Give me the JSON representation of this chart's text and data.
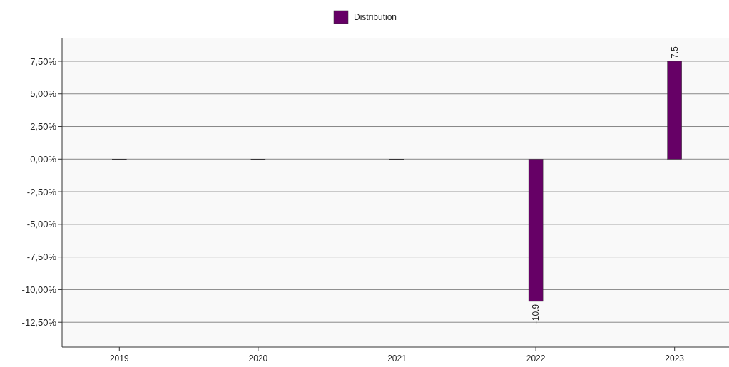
{
  "chart_data": {
    "type": "bar",
    "categories": [
      "2019",
      "2020",
      "2021",
      "2022",
      "2023"
    ],
    "series": [
      {
        "name": "Distribution",
        "color": "#660066",
        "values": [
          0,
          0,
          0,
          -10.9,
          7.5
        ],
        "value_labels": [
          null,
          null,
          null,
          "-10.9",
          "7.5"
        ]
      }
    ],
    "ylim": [
      -14.4,
      9.3
    ],
    "yticks": [
      {
        "value": 7.5,
        "label": "7,50%"
      },
      {
        "value": 5,
        "label": "5,00%"
      },
      {
        "value": 2.5,
        "label": "2,50%"
      },
      {
        "value": 0,
        "label": "0,00%"
      },
      {
        "value": -2.5,
        "label": "-2,50%"
      },
      {
        "value": -5,
        "label": "-5,00%"
      },
      {
        "value": -7.5,
        "label": "-7,50%"
      },
      {
        "value": -10,
        "label": "-10,00%"
      },
      {
        "value": -12.5,
        "label": "-12,50%"
      }
    ],
    "grid": "y",
    "legend": "top"
  }
}
